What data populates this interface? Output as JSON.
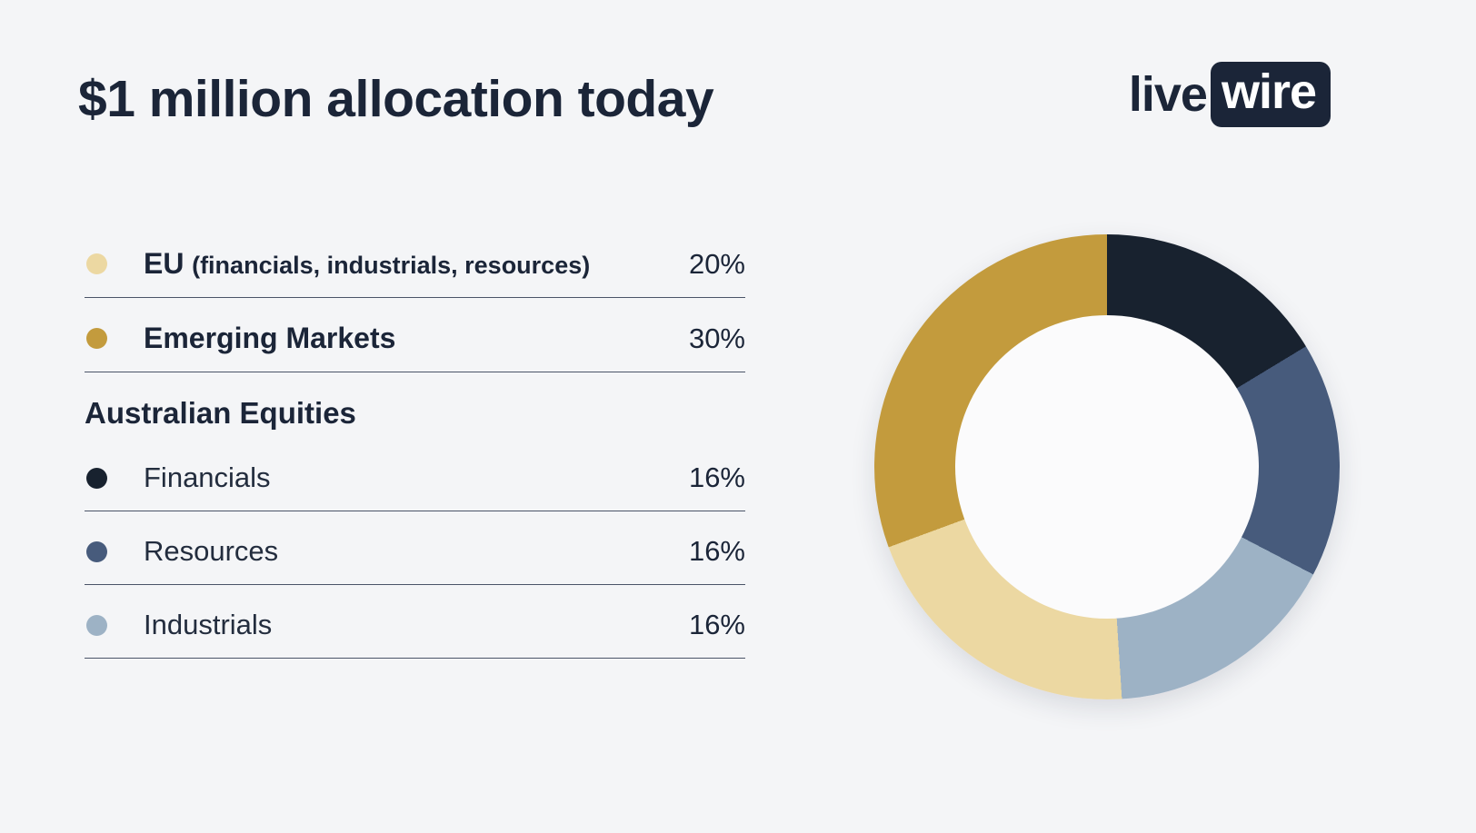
{
  "page": {
    "title": "$1 million allocation today",
    "background": "#f4f5f7"
  },
  "logo": {
    "live": "live",
    "wire": "wire"
  },
  "legend": {
    "rows_top": [
      {
        "label": "EU",
        "label_sub": "(financials, industrials, resources)",
        "value": "20%",
        "color": "#ecd8a2"
      },
      {
        "label": "Emerging Markets",
        "label_sub": "",
        "value": "30%",
        "color": "#c39b3d"
      }
    ],
    "heading": "Australian Equities",
    "rows_bottom": [
      {
        "label": "Financials",
        "value": "16%",
        "color": "#18222f"
      },
      {
        "label": "Resources",
        "value": "16%",
        "color": "#475b7c"
      },
      {
        "label": "Industrials",
        "value": "16%",
        "color": "#9db2c5"
      }
    ]
  },
  "chart_data": {
    "type": "pie",
    "donut": true,
    "title": "$1 million allocation today",
    "legend_position": "left",
    "start_angle_deg": 0,
    "direction": "clockwise",
    "unit": "%",
    "segments": [
      {
        "name": "Financials",
        "value": 16,
        "color": "#18222f"
      },
      {
        "name": "Resources",
        "value": 16,
        "color": "#475b7c"
      },
      {
        "name": "Industrials",
        "value": 16,
        "color": "#9db2c5"
      },
      {
        "name": "EU (financials, industrials, resources)",
        "value": 20,
        "color": "#ecd8a2"
      },
      {
        "name": "Emerging Markets",
        "value": 30,
        "color": "#c39b3d"
      }
    ]
  }
}
